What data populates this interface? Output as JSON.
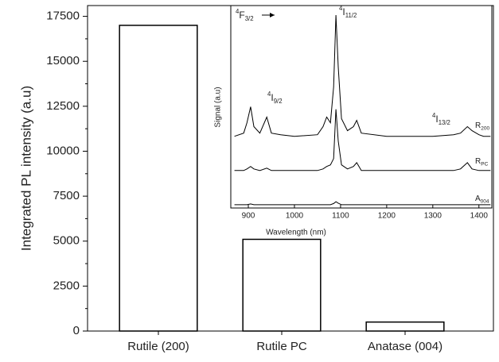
{
  "chart_data": [
    {
      "type": "bar",
      "y_label": "Integrated PL intensity (a.u)",
      "categories": [
        "Rutile (200)",
        "Rutile PC",
        "Anatase (004)"
      ],
      "values": [
        17000,
        5100,
        500
      ],
      "color": "#ffffff",
      "ylim": [
        0,
        18100
      ],
      "yticks": [
        0,
        2500,
        5000,
        7500,
        10000,
        12500,
        15000,
        17500
      ],
      "yminor_ticks": [
        1250,
        3750,
        6250,
        8750,
        11250,
        13750,
        16250
      ]
    },
    {
      "type": "line",
      "x_label": "Wavelength (nm)",
      "y_label": "Signal (a.u)",
      "x": [
        870,
        890,
        897,
        905,
        912,
        925,
        940,
        950,
        970,
        1000,
        1050,
        1062,
        1070,
        1078,
        1085,
        1090,
        1095,
        1102,
        1115,
        1128,
        1135,
        1145,
        1200,
        1300,
        1345,
        1360,
        1375,
        1385,
        1400,
        1410,
        1425
      ],
      "series": [
        {
          "name": "R",
          "name_sub": "200",
          "color": "#000000",
          "values": [
            35.4,
            37.0,
            42.1,
            50.0,
            40.2,
            37.0,
            44.9,
            37.0,
            36.2,
            35.4,
            36.2,
            40.2,
            44.9,
            42.1,
            59.8,
            95.3,
            69.7,
            44.1,
            38.2,
            40.2,
            43.3,
            37.0,
            35.4,
            35.4,
            36.2,
            37.0,
            40.2,
            38.2,
            36.2,
            35.4,
            35.4
          ]
        },
        {
          "name": "R",
          "name_sub": "PC",
          "color": "#000000",
          "values": [
            18.5,
            18.5,
            19.3,
            20.5,
            19.3,
            18.5,
            19.7,
            18.5,
            18.5,
            18.5,
            18.5,
            19.3,
            20.5,
            21.3,
            24.4,
            48.8,
            33.1,
            21.3,
            19.3,
            20.5,
            22.4,
            18.5,
            18.5,
            18.5,
            18.5,
            19.3,
            22.4,
            19.3,
            18.5,
            18.5,
            18.5
          ]
        },
        {
          "name": "A",
          "name_sub": "004",
          "color": "#000000",
          "values": [
            1.6,
            1.6,
            1.6,
            2.0,
            1.6,
            1.6,
            1.6,
            1.6,
            1.6,
            1.6,
            1.6,
            1.6,
            1.6,
            1.6,
            2.2,
            3.1,
            2.4,
            1.6,
            1.6,
            1.6,
            1.6,
            1.6,
            1.6,
            1.6,
            1.6,
            1.6,
            1.6,
            1.6,
            1.6,
            1.6,
            1.6
          ]
        }
      ],
      "annotations": [
        {
          "sup": "4",
          "text": "F",
          "sub": "3/2"
        },
        {
          "sup": "4",
          "text": "I",
          "sub": "9/2"
        },
        {
          "sup": "4",
          "text": "I",
          "sub": "11/2"
        },
        {
          "sup": "4",
          "text": "I",
          "sub": "13/2"
        }
      ],
      "xlim": [
        862,
        1428
      ],
      "ylim": [
        0,
        100
      ],
      "xticks": [
        900,
        1000,
        1100,
        1200,
        1300,
        1400
      ]
    }
  ]
}
